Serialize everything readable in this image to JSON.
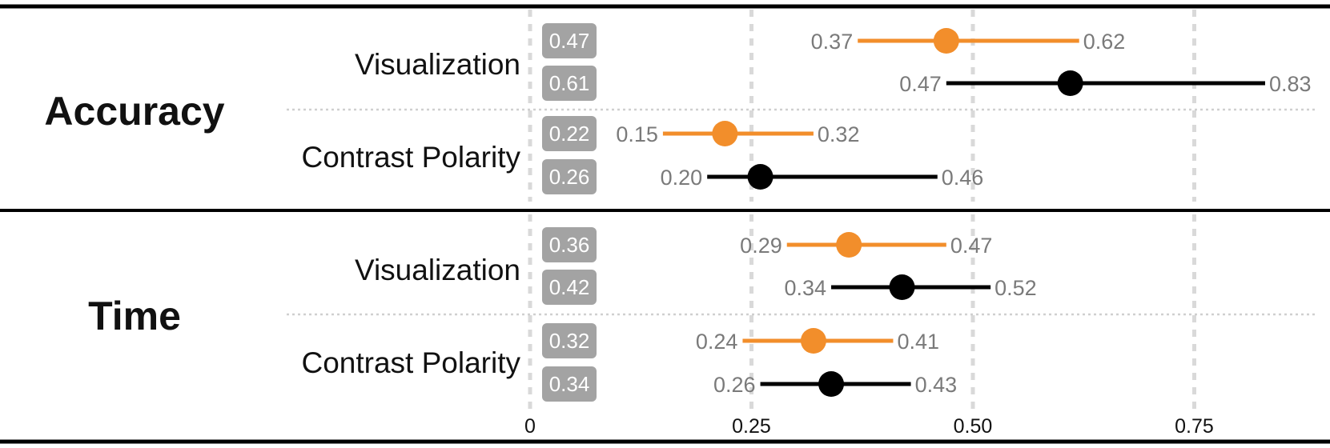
{
  "chart_data": {
    "type": "forest",
    "xlim": [
      0,
      0.88
    ],
    "x_ticks": [
      0,
      0.25,
      0.5,
      0.75
    ],
    "x_tick_labels": [
      "0",
      "0.25",
      "0.50",
      "0.75"
    ],
    "grid": true,
    "series_colors": [
      "#F28E2B",
      "#000000"
    ],
    "groups": [
      {
        "name": "Accuracy",
        "factors": [
          {
            "name": "Visualization",
            "estimates": [
              {
                "value": 0.47,
                "label": "0.47",
                "lower": 0.37,
                "lower_label": "0.37",
                "upper": 0.62,
                "upper_label": "0.62",
                "color": "#F28E2B"
              },
              {
                "value": 0.61,
                "label": "0.61",
                "lower": 0.47,
                "lower_label": "0.47",
                "upper": 0.83,
                "upper_label": "0.83",
                "color": "#000000"
              }
            ]
          },
          {
            "name": "Contrast Polarity",
            "estimates": [
              {
                "value": 0.22,
                "label": "0.22",
                "lower": 0.15,
                "lower_label": "0.15",
                "upper": 0.32,
                "upper_label": "0.32",
                "color": "#F28E2B"
              },
              {
                "value": 0.26,
                "label": "0.26",
                "lower": 0.2,
                "lower_label": "0.20",
                "upper": 0.46,
                "upper_label": "0.46",
                "color": "#000000"
              }
            ]
          }
        ]
      },
      {
        "name": "Time",
        "factors": [
          {
            "name": "Visualization",
            "estimates": [
              {
                "value": 0.36,
                "label": "0.36",
                "lower": 0.29,
                "lower_label": "0.29",
                "upper": 0.47,
                "upper_label": "0.47",
                "color": "#F28E2B"
              },
              {
                "value": 0.42,
                "label": "0.42",
                "lower": 0.34,
                "lower_label": "0.34",
                "upper": 0.52,
                "upper_label": "0.52",
                "color": "#000000"
              }
            ]
          },
          {
            "name": "Contrast Polarity",
            "estimates": [
              {
                "value": 0.32,
                "label": "0.32",
                "lower": 0.24,
                "lower_label": "0.24",
                "upper": 0.41,
                "upper_label": "0.41",
                "color": "#F28E2B"
              },
              {
                "value": 0.34,
                "label": "0.34",
                "lower": 0.26,
                "lower_label": "0.26",
                "upper": 0.43,
                "upper_label": "0.43",
                "color": "#000000"
              }
            ]
          }
        ]
      }
    ]
  }
}
